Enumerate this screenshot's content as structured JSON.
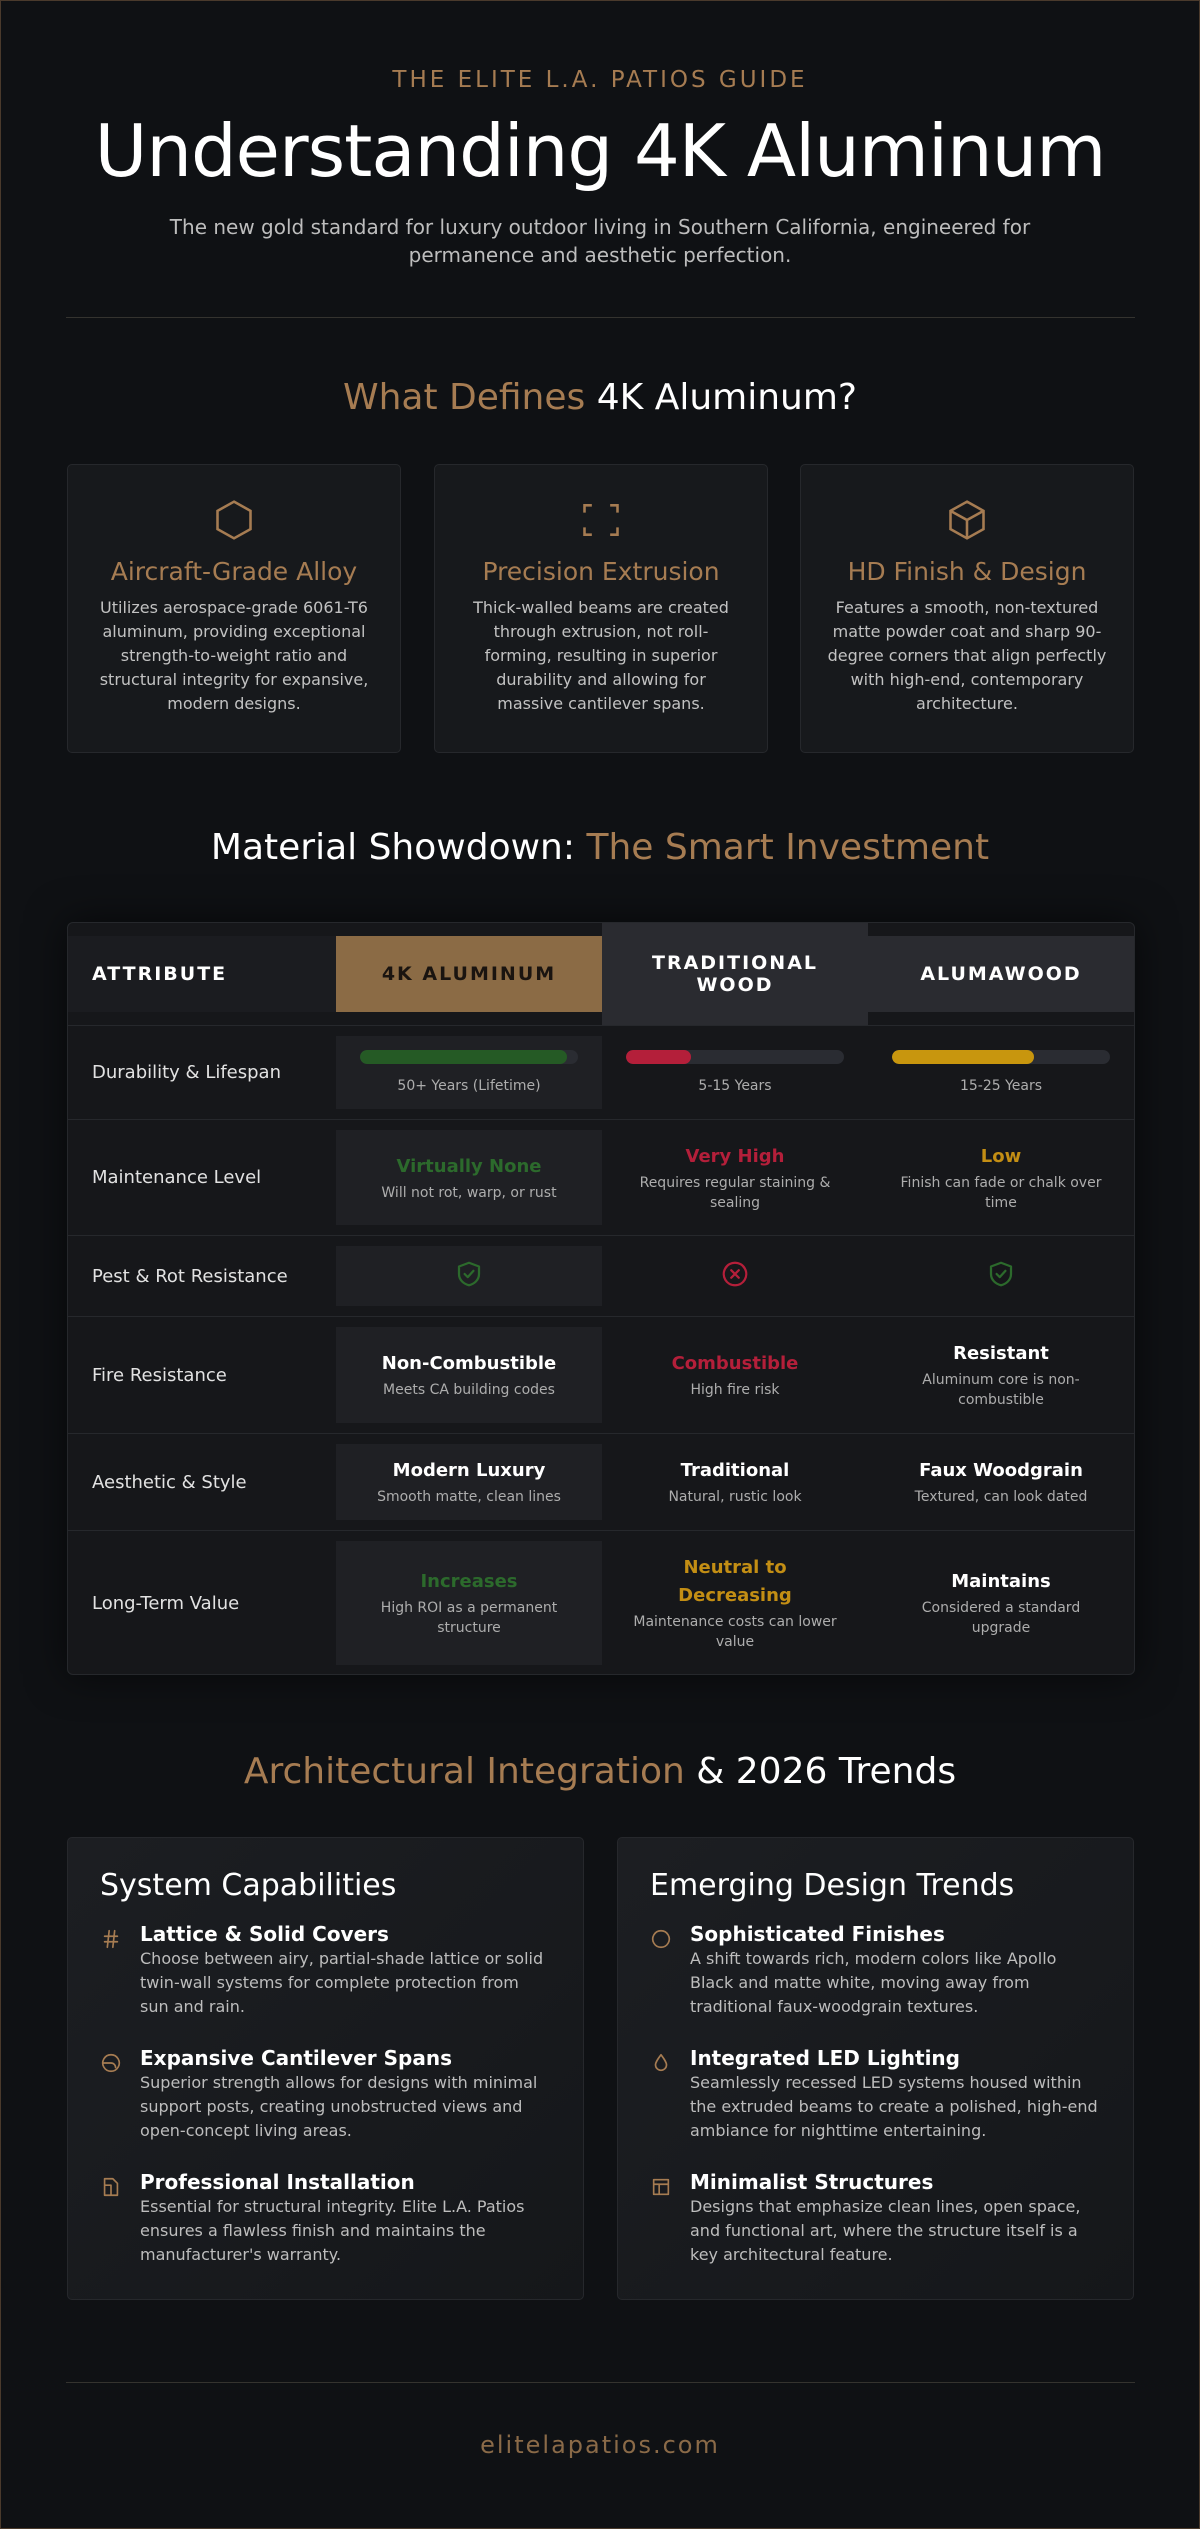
{
  "header": {
    "kicker": "THE ELITE L.A. PATIOS GUIDE",
    "title": "Understanding 4K Aluminum",
    "subtitle": "The new gold standard for luxury outdoor living in Southern California, engineered for permanence and aesthetic perfection."
  },
  "features": {
    "heading_accent": "What Defines",
    "heading_rest": "4K Aluminum?",
    "cards": [
      {
        "title": "Aircraft-Grade Alloy",
        "text": "Utilizes aerospace-grade 6061-T6 aluminum, providing exceptional strength-to-weight ratio and structural integrity for expansive, modern designs."
      },
      {
        "title": "Precision Extrusion",
        "text": "Thick-walled beams are created through extrusion, not roll-forming, resulting in superior durability and allowing for massive cantilever spans."
      },
      {
        "title": "HD Finish & Design",
        "text": "Features a smooth, non-textured matte powder coat and sharp 90-degree corners that align perfectly with high-end, contemporary architecture."
      }
    ]
  },
  "showdown": {
    "heading_plain": "Material Showdown:",
    "heading_accent": "The Smart Investment",
    "columns": [
      "ATTRIBUTE",
      "4K ALUMINUM",
      "TRADITIONAL WOOD",
      "ALUMAWOOD"
    ],
    "rows": [
      {
        "attribute": "Durability & Lifespan",
        "cells": [
          {
            "sub": "50+ Years (Lifetime)"
          },
          {
            "sub": "5-15 Years"
          },
          {
            "sub": "15-25 Years"
          }
        ]
      },
      {
        "attribute": "Maintenance Level",
        "cells": [
          {
            "main": "Virtually None",
            "sub": "Will not rot, warp, or rust"
          },
          {
            "main": "Very High",
            "sub": "Requires regular staining & sealing"
          },
          {
            "main": "Low",
            "sub": "Finish can fade or chalk over time"
          }
        ]
      },
      {
        "attribute": "Pest & Rot Resistance",
        "cells": [
          {},
          {},
          {}
        ]
      },
      {
        "attribute": "Fire Resistance",
        "cells": [
          {
            "main": "Non-Combustible",
            "sub": "Meets CA building codes"
          },
          {
            "main": "Combustible",
            "sub": "High fire risk"
          },
          {
            "main": "Resistant",
            "sub": "Aluminum core is non-combustible"
          }
        ]
      },
      {
        "attribute": "Aesthetic & Style",
        "cells": [
          {
            "main": "Modern Luxury",
            "sub": "Smooth matte, clean lines"
          },
          {
            "main": "Traditional",
            "sub": "Natural, rustic look"
          },
          {
            "main": "Faux Woodgrain",
            "sub": "Textured, can look dated"
          }
        ]
      },
      {
        "attribute": "Long-Term Value",
        "cells": [
          {
            "main": "Increases",
            "sub": "High ROI as a permanent structure"
          },
          {
            "main": "Neutral to Decreasing",
            "sub": "Maintenance costs can lower value"
          },
          {
            "main": "Maintains",
            "sub": "Considered a standard upgrade"
          }
        ]
      }
    ]
  },
  "integration": {
    "heading_accent": "Architectural Integration",
    "heading_rest": "& 2026 Trends",
    "panels": [
      {
        "title": "System Capabilities",
        "items": [
          {
            "title": "Lattice & Solid Covers",
            "text": "Choose between airy, partial-shade lattice or solid twin-wall systems for complete protection from sun and rain."
          },
          {
            "title": "Expansive Cantilever Spans",
            "text": "Superior strength allows for designs with minimal support posts, creating unobstructed views and open-concept living areas."
          },
          {
            "title": "Professional Installation",
            "text": "Essential for structural integrity. Elite L.A. Patios ensures a flawless finish and maintains the manufacturer's warranty."
          }
        ]
      },
      {
        "title": "Emerging Design Trends",
        "items": [
          {
            "title": "Sophisticated Finishes",
            "text": "A shift towards rich, modern colors like Apollo Black and matte white, moving away from traditional faux-woodgrain textures."
          },
          {
            "title": "Integrated LED Lighting",
            "text": "Seamlessly recessed LED systems housed within the extruded beams to create a polished, high-end ambiance for nighttime entertaining."
          },
          {
            "title": "Minimalist Structures",
            "text": "Designs that emphasize clean lines, open space, and functional art, where the structure itself is a key architectural feature."
          }
        ]
      }
    ]
  },
  "footer": {
    "site": "elitelapatios.com"
  }
}
